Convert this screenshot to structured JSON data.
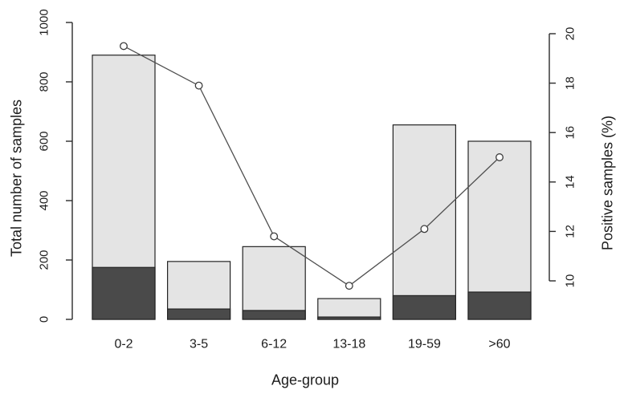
{
  "chart_data": {
    "type": "bar",
    "subtype": "stacked-bar-with-line-overlay",
    "title": "",
    "xlabel": "Age-group",
    "ylabel_left": "Total number of samples",
    "ylabel_right": "Positive samples (%)",
    "categories": [
      "0-2",
      "3-5",
      "6-12",
      "13-18",
      "19-59",
      ">60"
    ],
    "series": [
      {
        "name": "Total number of samples",
        "type": "bar",
        "axis": "left",
        "role": "total",
        "values": [
          890,
          195,
          245,
          70,
          655,
          600
        ]
      },
      {
        "name": "Positive samples (count, dark segment)",
        "type": "bar",
        "axis": "left",
        "role": "positive",
        "values": [
          175,
          35,
          30,
          8,
          80,
          92
        ]
      },
      {
        "name": "Positive samples (%)",
        "type": "line",
        "axis": "right",
        "marker": "open-circle",
        "values": [
          19.5,
          17.9,
          11.8,
          9.8,
          12.1,
          15.0
        ]
      }
    ],
    "ylim_left": [
      0,
      1000
    ],
    "yticks_left": [
      0,
      200,
      400,
      600,
      800,
      1000
    ],
    "ylim_right": [
      10,
      20
    ],
    "yticks_right": [
      10,
      12,
      14,
      16,
      18,
      20
    ],
    "grid": false,
    "legend": "none",
    "colors": {
      "background": "#ffffff",
      "bar_total_fill": "#e4e4e4",
      "bar_positive_fill": "#4a4a4a",
      "bar_border": "#242424",
      "line": "#4f4f4f",
      "marker_fill": "#ffffff",
      "marker_stroke": "#3c3c3c",
      "axis": "#2b2b2b",
      "text": "#1c1c1c"
    }
  }
}
